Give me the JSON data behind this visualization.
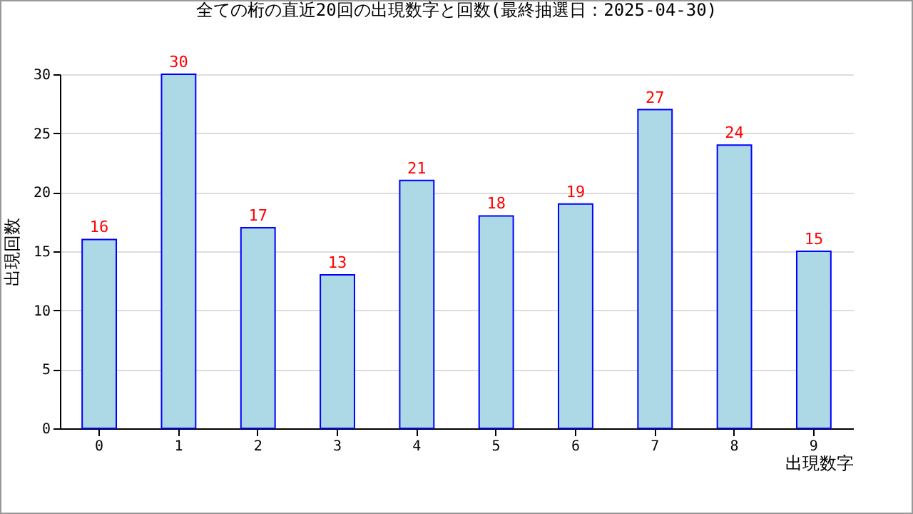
{
  "chart_data": {
    "type": "bar",
    "title": "全ての桁の直近20回の出現数字と回数(最終抽選日：2025-04-30)",
    "xlabel": "出現数字",
    "ylabel": "出現回数",
    "categories": [
      "0",
      "1",
      "2",
      "3",
      "4",
      "5",
      "6",
      "7",
      "8",
      "9"
    ],
    "values": [
      16,
      30,
      17,
      13,
      21,
      18,
      19,
      27,
      24,
      15
    ],
    "color": "#add8e6",
    "ylim": [
      0,
      30
    ],
    "yticks": [
      0,
      5,
      10,
      15,
      20,
      25,
      30
    ],
    "grid": "y",
    "data_labels": true
  }
}
